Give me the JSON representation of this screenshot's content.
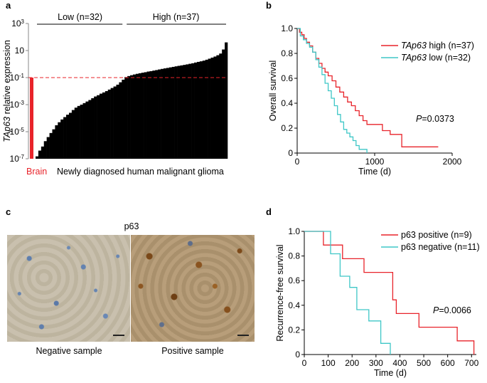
{
  "panels": {
    "a": {
      "letter": "a"
    },
    "b": {
      "letter": "b"
    },
    "c": {
      "letter": "c",
      "title": "p63",
      "caption_negative": "Negative sample",
      "caption_positive": "Positive sample"
    },
    "d": {
      "letter": "d"
    }
  },
  "colors": {
    "red": "#e8232a",
    "cyan": "#3ec7c7",
    "black": "#000000",
    "dashed": "#e8232a"
  },
  "chart_data": [
    {
      "id": "a",
      "type": "bar",
      "ylabel_italic": "TAp63",
      "ylabel_rest": " relative expression",
      "yscale": "log",
      "ylim": [
        1e-07,
        1000
      ],
      "yticks": [
        {
          "v": 1000,
          "base": "10",
          "exp": "3"
        },
        {
          "v": 10,
          "base": "10",
          "exp": ""
        },
        {
          "v": 0.1,
          "base": "10",
          "exp": "-1"
        },
        {
          "v": 0.001,
          "base": "10",
          "exp": "-3"
        },
        {
          "v": 1e-05,
          "base": "10",
          "exp": "-5"
        },
        {
          "v": 1e-07,
          "base": "10",
          "exp": "-7"
        }
      ],
      "threshold": 0.1,
      "brain_label": "Brain",
      "brain_value": 0.1,
      "xlabel": "Newly diagnosed human malignant glioma",
      "group_low": "Low (n=32)",
      "group_high": "High (n=37)",
      "low_count": 32,
      "values": [
        1.5e-07,
        4e-07,
        8e-07,
        2e-06,
        4e-06,
        8e-06,
        1.5e-05,
        3e-05,
        5e-05,
        8e-05,
        0.00012,
        0.00018,
        0.00025,
        0.0004,
        0.0006,
        0.0008,
        0.001,
        0.0013,
        0.0017,
        0.0022,
        0.003,
        0.004,
        0.005,
        0.0065,
        0.008,
        0.01,
        0.013,
        0.017,
        0.022,
        0.03,
        0.045,
        0.07,
        0.11,
        0.13,
        0.15,
        0.17,
        0.19,
        0.21,
        0.23,
        0.25,
        0.28,
        0.3,
        0.33,
        0.36,
        0.4,
        0.44,
        0.48,
        0.52,
        0.57,
        0.62,
        0.68,
        0.74,
        0.8,
        0.87,
        0.95,
        1.05,
        1.15,
        1.3,
        1.45,
        1.6,
        1.8,
        2.1,
        2.5,
        3.0,
        3.6,
        4.5,
        6.0,
        12,
        40
      ]
    },
    {
      "id": "b",
      "type": "line",
      "step": true,
      "xlabel": "Time (d)",
      "ylabel": "Overall survival",
      "xlim": [
        0,
        2000
      ],
      "ylim": [
        0,
        1.0
      ],
      "xticks": [
        "0",
        "1000",
        "2000"
      ],
      "yticks": [
        "0",
        "0.2",
        "0.4",
        "0.6",
        "0.8",
        "1.0"
      ],
      "pvalue_prefix": "P",
      "pvalue_rest": "=0.0373",
      "series": [
        {
          "name_italic": "TAp63",
          "name_rest": " high (n=37)",
          "color": "#e8232a",
          "x": [
            0,
            30,
            60,
            90,
            120,
            160,
            200,
            240,
            280,
            320,
            360,
            400,
            450,
            500,
            550,
            600,
            650,
            700,
            750,
            800,
            850,
            900,
            1000,
            1100,
            1200,
            1350,
            1500,
            1820
          ],
          "y": [
            1.0,
            0.97,
            0.95,
            0.92,
            0.89,
            0.86,
            0.81,
            0.76,
            0.72,
            0.68,
            0.65,
            0.62,
            0.58,
            0.53,
            0.49,
            0.45,
            0.41,
            0.38,
            0.34,
            0.3,
            0.26,
            0.23,
            0.23,
            0.18,
            0.15,
            0.05,
            0.05,
            0.05
          ]
        },
        {
          "name_italic": "TAp63",
          "name_rest": " low (n=32)",
          "color": "#3ec7c7",
          "x": [
            0,
            40,
            80,
            120,
            160,
            200,
            240,
            280,
            320,
            360,
            400,
            440,
            480,
            520,
            560,
            600,
            640,
            680,
            720,
            760,
            800,
            850,
            900
          ],
          "y": [
            1.0,
            0.94,
            0.91,
            0.88,
            0.85,
            0.81,
            0.75,
            0.69,
            0.63,
            0.56,
            0.5,
            0.44,
            0.38,
            0.31,
            0.25,
            0.19,
            0.16,
            0.13,
            0.1,
            0.06,
            0.03,
            0.03,
            0.0
          ]
        }
      ]
    },
    {
      "id": "d",
      "type": "line",
      "step": true,
      "xlabel": "Time (d)",
      "ylabel": "Recurrence-free survival",
      "xlim": [
        0,
        720
      ],
      "ylim": [
        0,
        1.0
      ],
      "xticks": [
        "0",
        "100",
        "200",
        "300",
        "400",
        "500",
        "600",
        "700"
      ],
      "yticks": [
        "0",
        "0.2",
        "0.4",
        "0.6",
        "0.8",
        "1.0"
      ],
      "pvalue_prefix": "P",
      "pvalue_rest": "=0.0066",
      "series": [
        {
          "name_plain": "p63 positive (n=9)",
          "color": "#e8232a",
          "x": [
            0,
            80,
            160,
            250,
            370,
            385,
            480,
            640,
            710
          ],
          "y": [
            1.0,
            0.889,
            0.778,
            0.667,
            0.444,
            0.333,
            0.222,
            0.111,
            0.0
          ]
        },
        {
          "name_plain": "p63 negative (n=11)",
          "color": "#3ec7c7",
          "x": [
            0,
            110,
            150,
            190,
            220,
            270,
            320,
            360
          ],
          "y": [
            1.0,
            0.818,
            0.636,
            0.545,
            0.364,
            0.273,
            0.091,
            0.0
          ]
        }
      ]
    }
  ]
}
